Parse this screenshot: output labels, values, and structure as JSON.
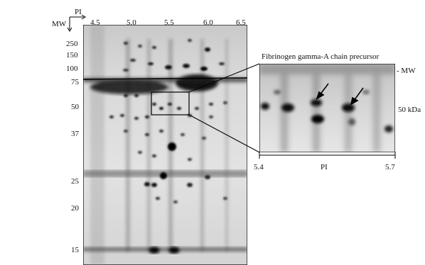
{
  "axis": {
    "mw_label": "MW",
    "pi_label": "PI"
  },
  "pi_ticks": [
    "4.5",
    "5.0",
    "5.5",
    "6.0",
    "6.5"
  ],
  "mw_ticks": [
    "250",
    "150",
    "100",
    "75",
    "50",
    "37",
    "25",
    "20",
    "15"
  ],
  "inset": {
    "title": "Fibrinogen gamma-A chain precursor",
    "mw_marker": "- MW",
    "kda_label": "50 kDa",
    "pi_start": "5.4",
    "pi_label": "PI",
    "pi_end": "5.7"
  }
}
